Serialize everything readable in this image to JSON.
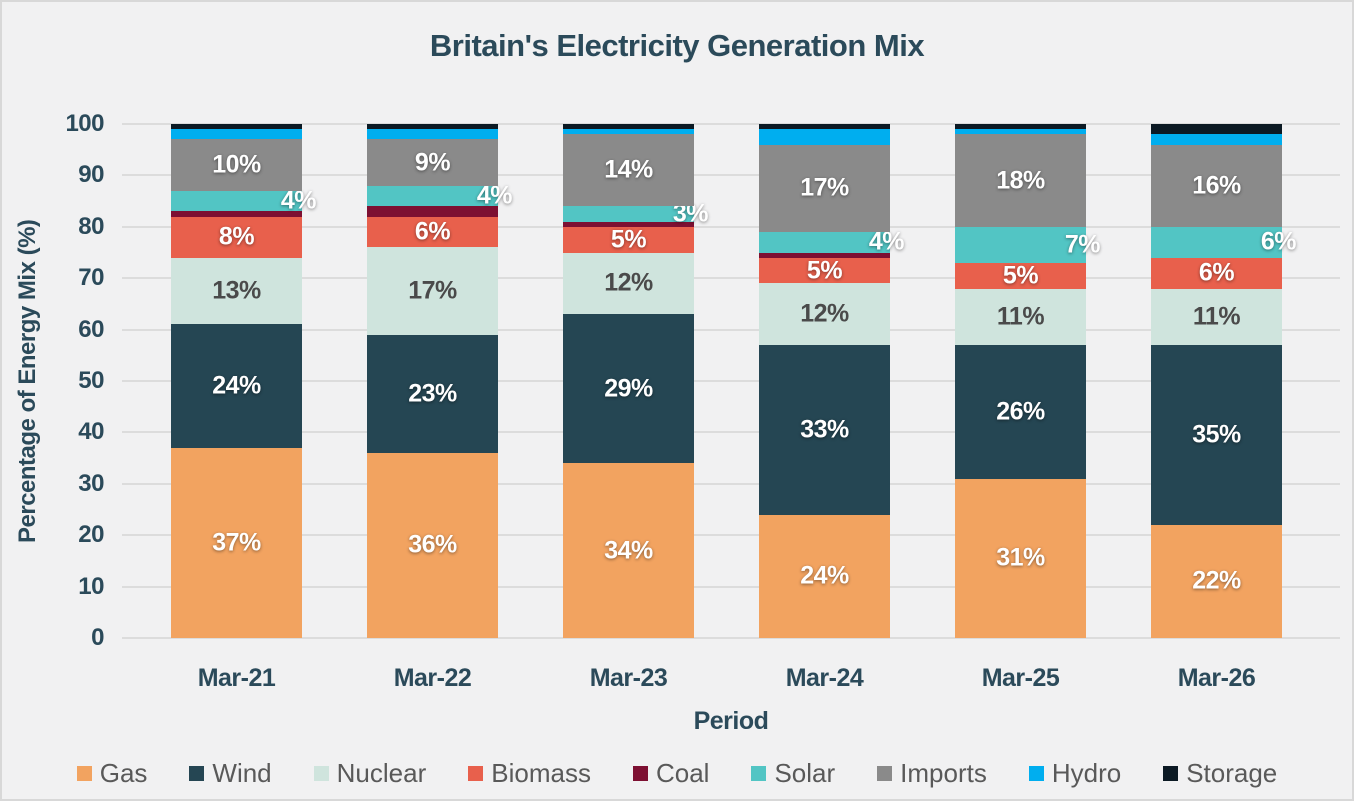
{
  "chart_data": {
    "type": "bar",
    "stacked": true,
    "title": "Britain's Electricity Generation Mix",
    "xlabel": "Period",
    "ylabel": "Percentage of Energy Mix (%)",
    "ylim": [
      0,
      100
    ],
    "yticks": [
      0,
      10,
      20,
      30,
      40,
      50,
      60,
      70,
      80,
      90,
      100
    ],
    "grid": true,
    "legend_position": "bottom",
    "categories": [
      "Mar-21",
      "Mar-22",
      "Mar-23",
      "Mar-24",
      "Mar-25",
      "Mar-26"
    ],
    "series": [
      {
        "name": "Gas",
        "color": "#F2A360",
        "values": [
          37,
          36,
          34,
          24,
          31,
          22
        ],
        "labels": [
          "37%",
          "36%",
          "34%",
          "24%",
          "31%",
          "22%"
        ],
        "label_color": "#FFFFFF",
        "label_align": "center"
      },
      {
        "name": "Wind",
        "color": "#254653",
        "values": [
          24,
          23,
          29,
          33,
          26,
          35
        ],
        "labels": [
          "24%",
          "23%",
          "29%",
          "33%",
          "26%",
          "35%"
        ],
        "label_color": "#FFFFFF",
        "label_align": "center"
      },
      {
        "name": "Nuclear",
        "color": "#CFE4DD",
        "values": [
          13,
          17,
          12,
          12,
          11,
          11
        ],
        "labels": [
          "13%",
          "17%",
          "12%",
          "12%",
          "11%",
          "11%"
        ],
        "label_color": "#4A4A4A",
        "label_align": "center"
      },
      {
        "name": "Biomass",
        "color": "#E8604C",
        "values": [
          8,
          6,
          5,
          5,
          5,
          6
        ],
        "labels": [
          "8%",
          "6%",
          "5%",
          "5%",
          "5%",
          "6%"
        ],
        "label_color": "#FFFFFF",
        "label_align": "center"
      },
      {
        "name": "Coal",
        "color": "#7D1032",
        "values": [
          1,
          2,
          1,
          1,
          0,
          0
        ],
        "labels": [
          "",
          "",
          "",
          "",
          "",
          ""
        ],
        "label_color": "#FFFFFF",
        "label_align": "center"
      },
      {
        "name": "Solar",
        "color": "#52C5C4",
        "values": [
          4,
          4,
          3,
          4,
          7,
          6
        ],
        "labels": [
          "4%",
          "4%",
          "3%",
          "4%",
          "7%",
          "6%"
        ],
        "label_color": "#FFFFFF",
        "label_align": "right"
      },
      {
        "name": "Imports",
        "color": "#8A8A8A",
        "values": [
          10,
          9,
          14,
          17,
          18,
          16
        ],
        "labels": [
          "10%",
          "9%",
          "14%",
          "17%",
          "18%",
          "16%"
        ],
        "label_color": "#FFFFFF",
        "label_align": "center"
      },
      {
        "name": "Hydro",
        "color": "#00AEEF",
        "values": [
          2,
          2,
          1,
          3,
          1,
          2
        ],
        "labels": [
          "",
          "",
          "",
          "",
          "",
          ""
        ],
        "label_color": "#FFFFFF",
        "label_align": "center"
      },
      {
        "name": "Storage",
        "color": "#0C1A24",
        "values": [
          1,
          1,
          1,
          1,
          1,
          2
        ],
        "labels": [
          "",
          "",
          "",
          "",
          "",
          ""
        ],
        "label_color": "#FFFFFF",
        "label_align": "center"
      }
    ]
  },
  "colors": {
    "background": "#F1F1F2",
    "frame_border": "#D8D8D8",
    "gridline": "#DCDCDC",
    "axis_text": "#2B4A5A",
    "legend_text": "#595959"
  }
}
